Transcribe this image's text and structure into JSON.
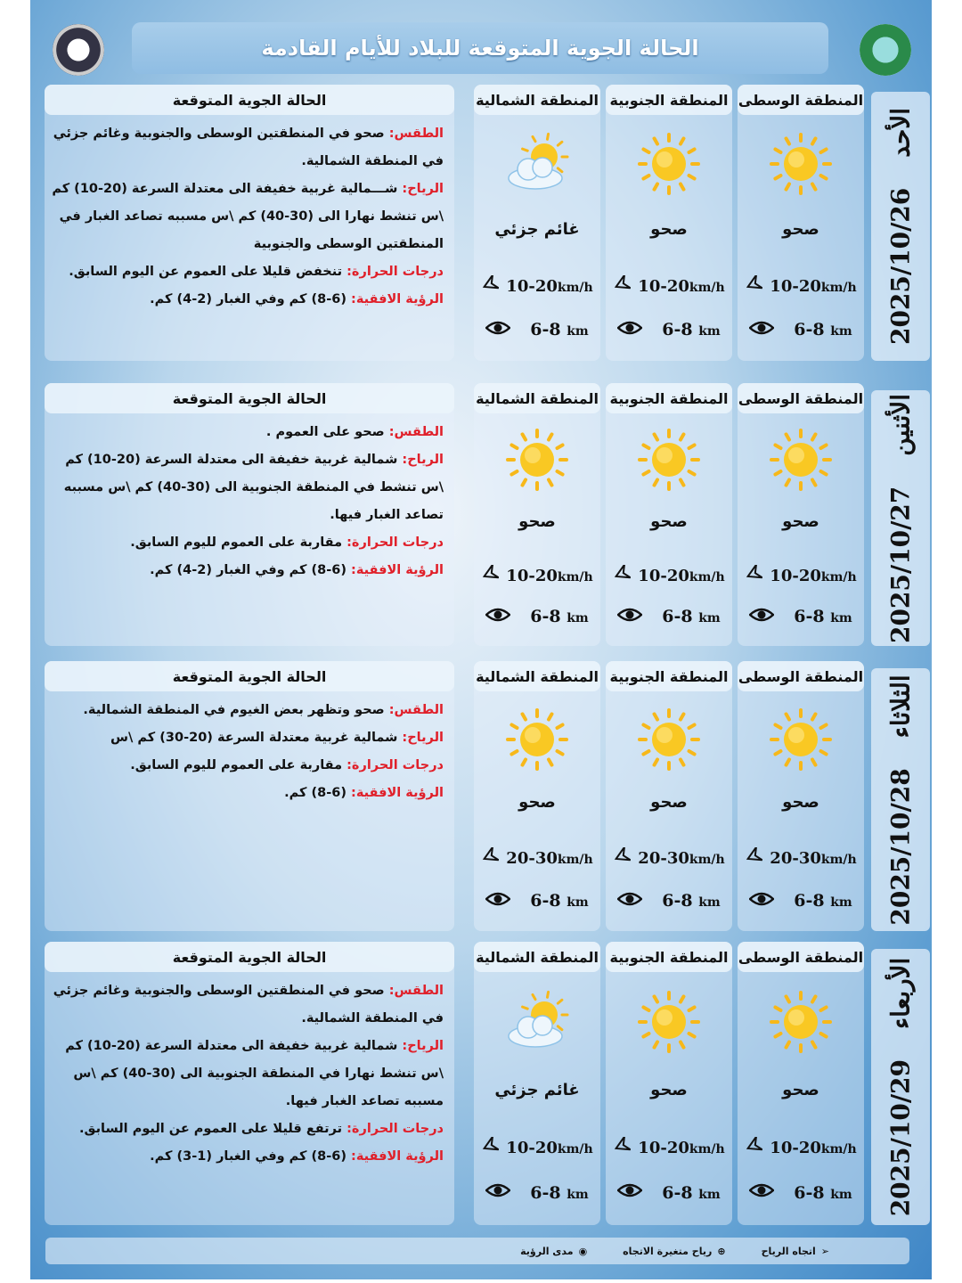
{
  "header": {
    "title": "الحالة الجوية المتوقعة للبلاد للأيام القادمة"
  },
  "panel_title": "الحالة الجوية المتوقعة",
  "colors": {
    "label_red": "#e0202a",
    "sun": "#f7c21a"
  },
  "days": [
    {
      "name": "الأحد",
      "date": "2025/10/26",
      "text": [
        {
          "k": "الطقس:",
          "v": " صحو في المنطقتين الوسطى والجنوبية وغائم جزئي في المنطقة الشمالية."
        },
        {
          "k": "الرياح:",
          "v": " شـــمالية غربية خفيفة الى معتدلة السرعة (20-10) كم \\س تنشط نهارا الى (30-40) كم \\س مسببه تصاعد الغبار في المنطقتين الوسطى والجنوبية"
        },
        {
          "k": "درجات الحرارة:",
          "v": " تنخفض قليلا على العموم عن اليوم السابق."
        },
        {
          "k": "الرؤية الافقية:",
          "v": " (6-8) كم وفي الغبار (2-4) كم."
        }
      ],
      "regions": [
        {
          "name": "المنطقة الوسطى",
          "cond": "صحو",
          "icon": "sun-icon",
          "wind": "10-20",
          "vis": "6-8"
        },
        {
          "name": "المنطقة الجنوبية",
          "cond": "صحو",
          "icon": "sun-icon",
          "wind": "10-20",
          "vis": "6-8"
        },
        {
          "name": "المنطقة الشمالية",
          "cond": "غائم جزئي",
          "icon": "partly-cloudy-icon",
          "wind": "10-20",
          "vis": "6-8"
        }
      ]
    },
    {
      "name": "الأثنين",
      "date": "2025/10/27",
      "text": [
        {
          "k": "الطقس:",
          "v": " صحو على العموم ."
        },
        {
          "k": "الرياح:",
          "v": " شمالية غربية خفيفة الى معتدلة السرعة (20-10) كم \\س تنشط في المنطقة الجنوبية الى (30-40) كم \\س مسببه تصاعد الغبار فيها."
        },
        {
          "k": "درجات الحرارة:",
          "v": " مقاربة على العموم لليوم السابق."
        },
        {
          "k": "الرؤية الافقية:",
          "v": " (6-8) كم وفي الغبار (2-4) كم."
        }
      ],
      "regions": [
        {
          "name": "المنطقة الوسطى",
          "cond": "صحو",
          "icon": "sun-icon",
          "wind": "10-20",
          "vis": "6-8"
        },
        {
          "name": "المنطقة الجنوبية",
          "cond": "صحو",
          "icon": "sun-icon",
          "wind": "10-20",
          "vis": "6-8"
        },
        {
          "name": "المنطقة الشمالية",
          "cond": "صحو",
          "icon": "sun-icon",
          "wind": "10-20",
          "vis": "6-8"
        }
      ]
    },
    {
      "name": "الثلاثاء",
      "date": "2025/10/28",
      "text": [
        {
          "k": "الطقس:",
          "v": " صحو وتظهر بعض الغيوم في المنطقة الشمالية."
        },
        {
          "k": "الرياح:",
          "v": " شمالية غربية معتدلة السرعة (20-30) كم \\س"
        },
        {
          "k": "درجات الحرارة:",
          "v": " مقاربة على العموم لليوم السابق."
        },
        {
          "k": "الرؤية الافقية:",
          "v": " (6-8) كم."
        }
      ],
      "regions": [
        {
          "name": "المنطقة الوسطى",
          "cond": "صحو",
          "icon": "sun-icon",
          "wind": "20-30",
          "vis": "6-8"
        },
        {
          "name": "المنطقة الجنوبية",
          "cond": "صحو",
          "icon": "sun-icon",
          "wind": "20-30",
          "vis": "6-8"
        },
        {
          "name": "المنطقة الشمالية",
          "cond": "صحو",
          "icon": "sun-icon",
          "wind": "20-30",
          "vis": "6-8"
        }
      ]
    },
    {
      "name": "الأربعاء",
      "date": "2025/10/29",
      "text": [
        {
          "k": "الطقس:",
          "v": " صحو في المنطقتين الوسطى والجنوبية وغائم جزئي في المنطقة الشمالية."
        },
        {
          "k": "الرياح:",
          "v": " شمالية غربية خفيفة الى معتدلة السرعة (20-10) كم \\س تنشط نهارا في المنطقة الجنوبية الى (30-40) كم \\س مسببه تصاعد الغبار فيها."
        },
        {
          "k": "درجات الحرارة:",
          "v": " ترتفع قليلا على العموم عن اليوم السابق."
        },
        {
          "k": "الرؤية الافقية:",
          "v": " (6-8) كم وفي الغبار (1-3) كم."
        }
      ],
      "regions": [
        {
          "name": "المنطقة الوسطى",
          "cond": "صحو",
          "icon": "sun-icon",
          "wind": "10-20",
          "vis": "6-8"
        },
        {
          "name": "المنطقة الجنوبية",
          "cond": "صحو",
          "icon": "sun-icon",
          "wind": "10-20",
          "vis": "6-8"
        },
        {
          "name": "المنطقة الشمالية",
          "cond": "غائم جزئي",
          "icon": "partly-cloudy-icon",
          "wind": "10-20",
          "vis": "6-8"
        }
      ]
    }
  ],
  "units": {
    "wind": "km/h",
    "vis": "km"
  },
  "legend": {
    "wind_dir": "اتجاه الرياح",
    "variable": "رياح متغيرة الاتجاه",
    "visibility": "مدى الرؤية"
  }
}
